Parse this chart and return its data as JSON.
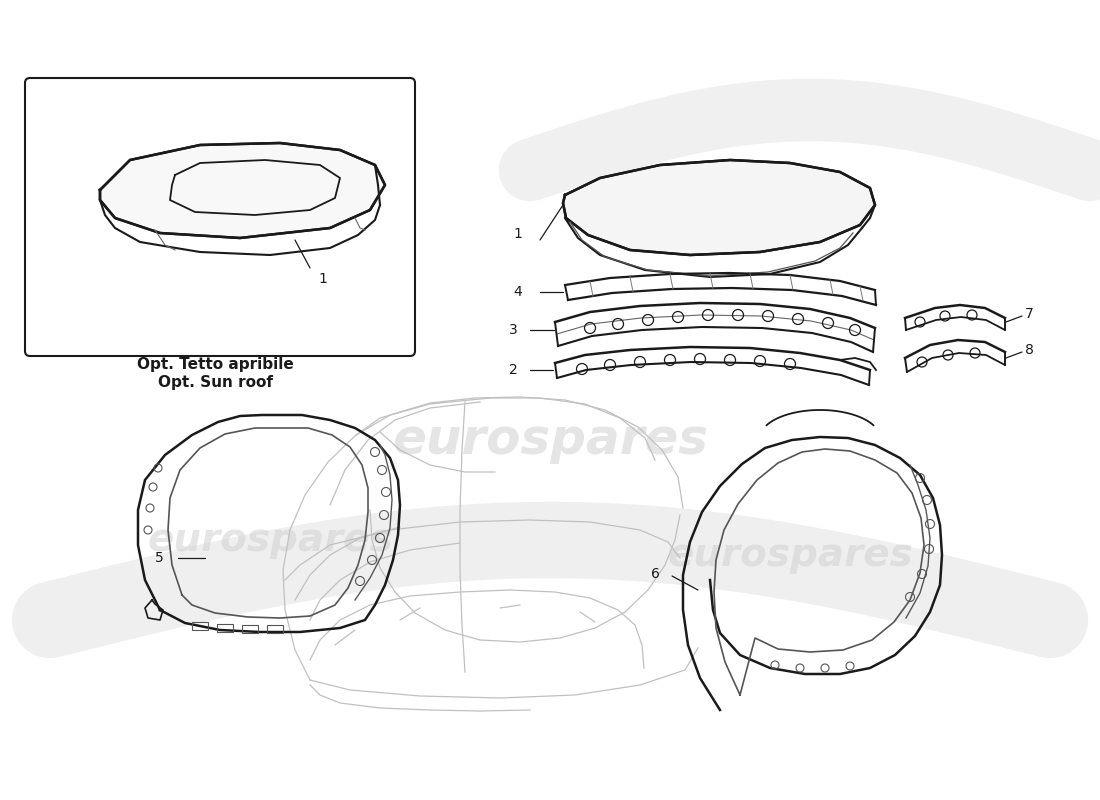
{
  "bg": "#ffffff",
  "lc": "#1a1a1a",
  "llc": "#aaaaaa",
  "wm_text": "eurospares",
  "wm_color": "#d0d0d0",
  "opt_line1": "Opt. Tetto apribile",
  "opt_line2": "Opt. Sun roof",
  "fig_w": 11.0,
  "fig_h": 8.0
}
